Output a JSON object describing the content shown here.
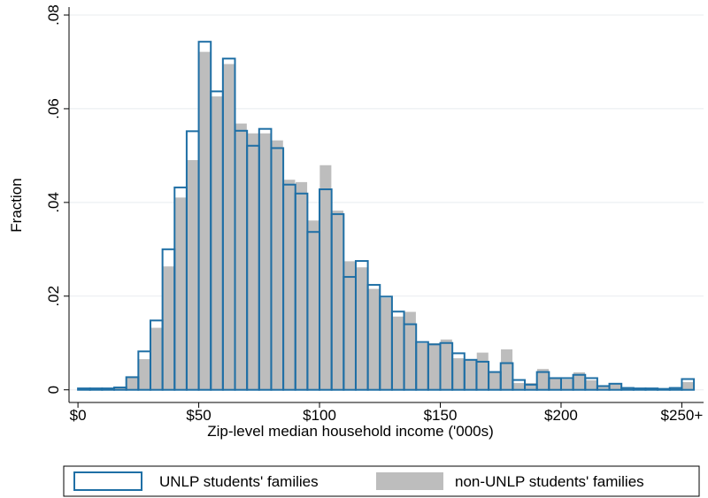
{
  "chart_data": {
    "type": "histogram",
    "x_label": "Zip-level median household income ('000s)",
    "y_label": "Fraction",
    "bins": [
      0,
      5,
      10,
      15,
      20,
      25,
      30,
      35,
      40,
      45,
      50,
      55,
      60,
      65,
      70,
      75,
      80,
      85,
      90,
      95,
      100,
      105,
      110,
      115,
      120,
      125,
      130,
      135,
      140,
      145,
      150,
      155,
      160,
      165,
      170,
      175,
      180,
      185,
      190,
      195,
      200,
      205,
      210,
      215,
      220,
      225,
      230,
      235,
      240,
      245,
      250,
      255
    ],
    "series": [
      {
        "name": "non-UNLP students' families",
        "color": "#bdbdbd",
        "style": "filled",
        "values": [
          0.0002,
          0.0003,
          0.0004,
          0.0006,
          0.0028,
          0.0066,
          0.0133,
          0.0264,
          0.0411,
          0.0491,
          0.0722,
          0.0627,
          0.0696,
          0.0569,
          0.0548,
          0.0548,
          0.0533,
          0.0449,
          0.0444,
          0.0362,
          0.048,
          0.0383,
          0.0275,
          0.0262,
          0.0216,
          0.0197,
          0.0157,
          0.0167,
          0.01,
          0.01,
          0.0108,
          0.0068,
          0.0064,
          0.008,
          0.0038,
          0.0087,
          0.0015,
          0.0015,
          0.0045,
          0.0025,
          0.0023,
          0.0038,
          0.0021,
          0.0009,
          0.0013,
          0.0004,
          0.0003,
          0.0003,
          0.0002,
          0.0004,
          0.0017
        ]
      },
      {
        "name": "UNLP students' families",
        "color": "#1f6fa5",
        "style": "outline",
        "values": [
          0.0003,
          0.0003,
          0.0003,
          0.0005,
          0.0027,
          0.0082,
          0.0148,
          0.03,
          0.0432,
          0.0552,
          0.0743,
          0.0637,
          0.0707,
          0.0553,
          0.0521,
          0.0557,
          0.0516,
          0.0438,
          0.0419,
          0.0337,
          0.0428,
          0.0375,
          0.0241,
          0.0275,
          0.0224,
          0.0199,
          0.0167,
          0.014,
          0.0102,
          0.0097,
          0.01,
          0.0078,
          0.0064,
          0.006,
          0.0038,
          0.0057,
          0.0021,
          0.0011,
          0.0038,
          0.0025,
          0.0025,
          0.0032,
          0.0025,
          0.0008,
          0.0013,
          0.0004,
          0.0003,
          0.0003,
          0.0002,
          0.0004,
          0.0023
        ]
      }
    ],
    "legend_order": [
      1,
      0
    ],
    "xlim": [
      -3.7,
      259
    ],
    "xticks": [
      {
        "value": 0,
        "label": "$0"
      },
      {
        "value": 50,
        "label": "$50"
      },
      {
        "value": 100,
        "label": "$100"
      },
      {
        "value": 150,
        "label": "$150"
      },
      {
        "value": 200,
        "label": "$200"
      },
      {
        "value": 250,
        "label": "$250+"
      }
    ],
    "ylim": [
      -0.0027,
      0.0817
    ],
    "yticks": [
      0,
      {
        "value": 0.02,
        "label": ".02"
      },
      {
        "value": 0.04,
        "label": ".04"
      },
      {
        "value": 0.06,
        "label": ".06"
      },
      {
        "value": 0.08,
        "label": ".08"
      }
    ],
    "grid": true
  }
}
